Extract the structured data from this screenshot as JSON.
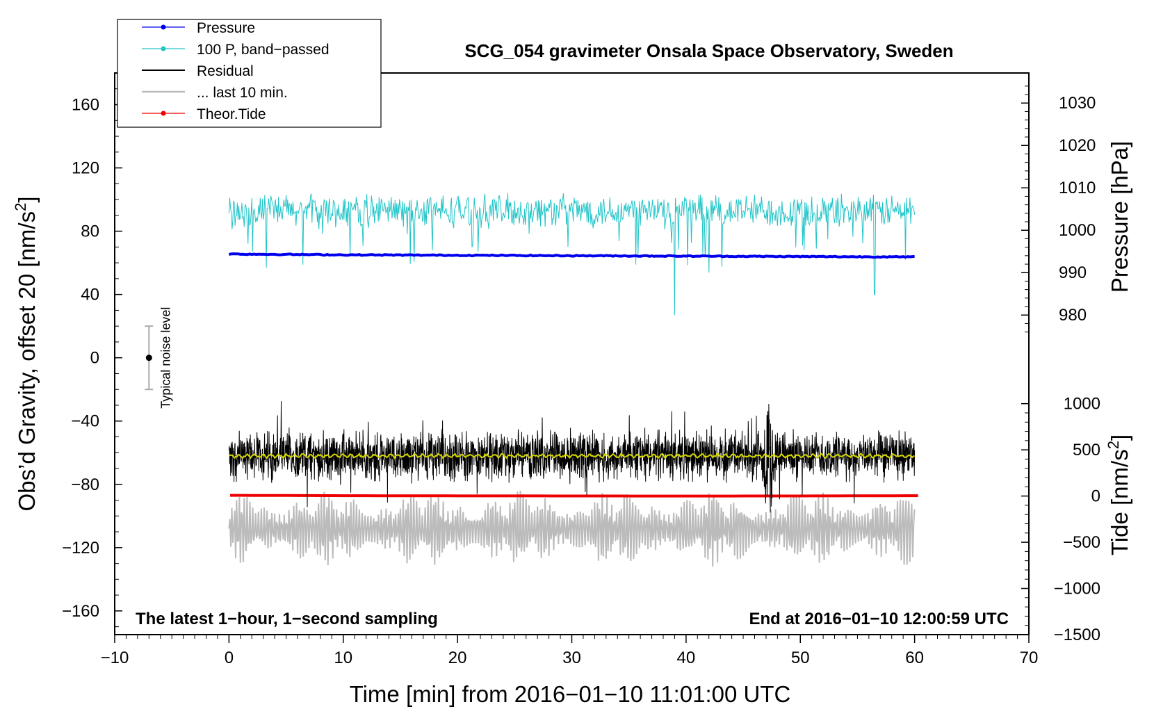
{
  "chart_data": {
    "type": "line",
    "title": "SCG_054 gravimeter Onsala Space Observatory, Sweden",
    "xlabel": "Time [min] from 2016−01−10 11:01:00 UTC",
    "ylabel_left_main": "Obs’d Gravity, offset 20 [nm/s",
    "ylabel_left_sup": "2",
    "ylabel_left_end": "]",
    "ylabel_right_pressure": "Pressure [hPa]",
    "ylabel_right_tide_main": "Tide [nm/s",
    "ylabel_right_tide_sup": "2",
    "ylabel_right_tide_end": "]",
    "xlim": [
      -10,
      70
    ],
    "ylim": [
      -175,
      180
    ],
    "x_ticks": [
      -10,
      0,
      10,
      20,
      30,
      40,
      50,
      60,
      70
    ],
    "x_tick_labels": [
      "−10",
      "0",
      "10",
      "20",
      "30",
      "40",
      "50",
      "60",
      "70"
    ],
    "y_ticks": [
      160,
      120,
      80,
      40,
      0,
      -40,
      -80,
      -120,
      -160
    ],
    "y_tick_labels": [
      "160",
      "120",
      "80",
      "40",
      "0",
      "−40",
      "−80",
      "−120",
      "−160"
    ],
    "pressure_axis": {
      "ticks": [
        1030,
        1020,
        1010,
        1000,
        990,
        980
      ],
      "tick_labels": [
        "1030",
        "1020",
        "1010",
        "1000",
        "990",
        "980"
      ],
      "mapping_gravity_at": {
        "1030": 161,
        "980": 27
      }
    },
    "tide_axis": {
      "ticks": [
        1000,
        500,
        0,
        -500,
        -1000,
        -1500
      ],
      "tick_labels": [
        "1000",
        "500",
        "0",
        "−500",
        "−1000",
        "−1500"
      ],
      "mapping_gravity_at": {
        "1000": -29,
        "-1500": -175
      }
    },
    "series": [
      {
        "name": "Pressure",
        "color": "#0000ee",
        "x": [
          0,
          10,
          20,
          30,
          40,
          50,
          60
        ],
        "values": [
          994.4,
          994.2,
          994.1,
          994.0,
          993.9,
          993.8,
          993.7
        ]
      },
      {
        "name": "100 P, band−passed",
        "color": "#22c4c8",
        "x_range": [
          0,
          60
        ],
        "center_value": 93,
        "typical_amplitude": 10,
        "min_value": 27,
        "note": "high-frequency oscillation around ~93 nm/s2 (gravity scale)"
      },
      {
        "name": "Residual",
        "color": "#000000",
        "x_range": [
          0,
          60
        ],
        "center_value": -62,
        "typical_amplitude": 12,
        "note": "dense 1-second noise; spike near 47 min reaching -26 and -97"
      },
      {
        "name": "... last 10 min.",
        "color": "#bbbbbb",
        "x_range": [
          0,
          60
        ],
        "center_value": -108,
        "typical_amplitude": 22
      },
      {
        "name": "Theor.Tide",
        "color": "#ee0000",
        "x": [
          0,
          10,
          20,
          30,
          40,
          50,
          60
        ],
        "values": [
          8,
          4,
          2,
          1,
          0,
          1,
          4
        ]
      },
      {
        "name": "smoothed residual",
        "color": "#d8d800",
        "x_range": [
          0,
          60
        ],
        "values_center": -62
      }
    ],
    "legend": {
      "placement": "top-left",
      "entries": [
        "Pressure",
        "100 P, band−passed",
        "Residual",
        "... last 10 min.",
        "Theor.Tide"
      ]
    },
    "noise_marker": {
      "label": "Typical noise level",
      "x": -7,
      "center": 0,
      "low": -20,
      "high": 20
    },
    "annotations": {
      "bottom_left": "The latest 1−hour, 1−second sampling",
      "bottom_right": "End at 2016−01−10 12:00:59 UTC"
    }
  }
}
